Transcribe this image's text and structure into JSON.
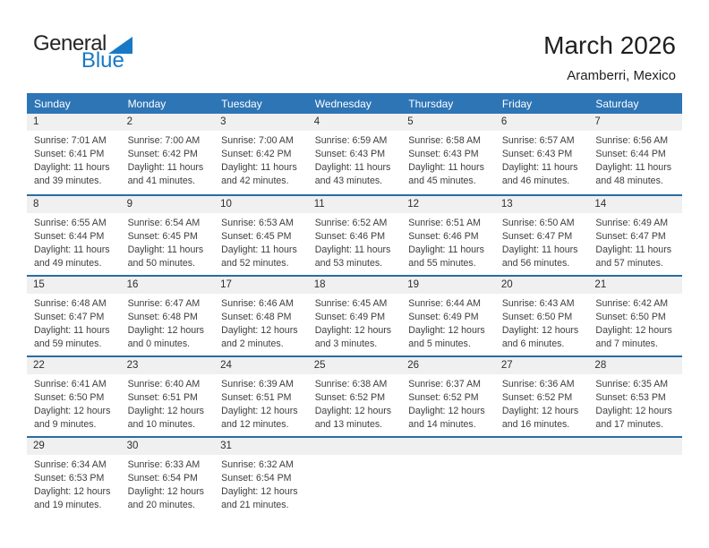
{
  "colors": {
    "header_bg": "#2E75B6",
    "week_divider": "#2B6CA3",
    "day_band_bg": "#F0F0F0",
    "logo_blue": "#1879C6",
    "title_color": "#1F1F1F",
    "body_text": "#3D3D3D",
    "day_number": "#2E2E2E"
  },
  "logo": {
    "general": "General",
    "blue": "Blue"
  },
  "header": {
    "title": "March 2026",
    "subtitle": "Aramberri, Mexico"
  },
  "weekdays": [
    "Sunday",
    "Monday",
    "Tuesday",
    "Wednesday",
    "Thursday",
    "Friday",
    "Saturday"
  ],
  "weeks": [
    [
      {
        "day": "1",
        "sunrise": "Sunrise: 7:01 AM",
        "sunset": "Sunset: 6:41 PM",
        "daylight1": "Daylight: 11 hours",
        "daylight2": "and 39 minutes."
      },
      {
        "day": "2",
        "sunrise": "Sunrise: 7:00 AM",
        "sunset": "Sunset: 6:42 PM",
        "daylight1": "Daylight: 11 hours",
        "daylight2": "and 41 minutes."
      },
      {
        "day": "3",
        "sunrise": "Sunrise: 7:00 AM",
        "sunset": "Sunset: 6:42 PM",
        "daylight1": "Daylight: 11 hours",
        "daylight2": "and 42 minutes."
      },
      {
        "day": "4",
        "sunrise": "Sunrise: 6:59 AM",
        "sunset": "Sunset: 6:43 PM",
        "daylight1": "Daylight: 11 hours",
        "daylight2": "and 43 minutes."
      },
      {
        "day": "5",
        "sunrise": "Sunrise: 6:58 AM",
        "sunset": "Sunset: 6:43 PM",
        "daylight1": "Daylight: 11 hours",
        "daylight2": "and 45 minutes."
      },
      {
        "day": "6",
        "sunrise": "Sunrise: 6:57 AM",
        "sunset": "Sunset: 6:43 PM",
        "daylight1": "Daylight: 11 hours",
        "daylight2": "and 46 minutes."
      },
      {
        "day": "7",
        "sunrise": "Sunrise: 6:56 AM",
        "sunset": "Sunset: 6:44 PM",
        "daylight1": "Daylight: 11 hours",
        "daylight2": "and 48 minutes."
      }
    ],
    [
      {
        "day": "8",
        "sunrise": "Sunrise: 6:55 AM",
        "sunset": "Sunset: 6:44 PM",
        "daylight1": "Daylight: 11 hours",
        "daylight2": "and 49 minutes."
      },
      {
        "day": "9",
        "sunrise": "Sunrise: 6:54 AM",
        "sunset": "Sunset: 6:45 PM",
        "daylight1": "Daylight: 11 hours",
        "daylight2": "and 50 minutes."
      },
      {
        "day": "10",
        "sunrise": "Sunrise: 6:53 AM",
        "sunset": "Sunset: 6:45 PM",
        "daylight1": "Daylight: 11 hours",
        "daylight2": "and 52 minutes."
      },
      {
        "day": "11",
        "sunrise": "Sunrise: 6:52 AM",
        "sunset": "Sunset: 6:46 PM",
        "daylight1": "Daylight: 11 hours",
        "daylight2": "and 53 minutes."
      },
      {
        "day": "12",
        "sunrise": "Sunrise: 6:51 AM",
        "sunset": "Sunset: 6:46 PM",
        "daylight1": "Daylight: 11 hours",
        "daylight2": "and 55 minutes."
      },
      {
        "day": "13",
        "sunrise": "Sunrise: 6:50 AM",
        "sunset": "Sunset: 6:47 PM",
        "daylight1": "Daylight: 11 hours",
        "daylight2": "and 56 minutes."
      },
      {
        "day": "14",
        "sunrise": "Sunrise: 6:49 AM",
        "sunset": "Sunset: 6:47 PM",
        "daylight1": "Daylight: 11 hours",
        "daylight2": "and 57 minutes."
      }
    ],
    [
      {
        "day": "15",
        "sunrise": "Sunrise: 6:48 AM",
        "sunset": "Sunset: 6:47 PM",
        "daylight1": "Daylight: 11 hours",
        "daylight2": "and 59 minutes."
      },
      {
        "day": "16",
        "sunrise": "Sunrise: 6:47 AM",
        "sunset": "Sunset: 6:48 PM",
        "daylight1": "Daylight: 12 hours",
        "daylight2": "and 0 minutes."
      },
      {
        "day": "17",
        "sunrise": "Sunrise: 6:46 AM",
        "sunset": "Sunset: 6:48 PM",
        "daylight1": "Daylight: 12 hours",
        "daylight2": "and 2 minutes."
      },
      {
        "day": "18",
        "sunrise": "Sunrise: 6:45 AM",
        "sunset": "Sunset: 6:49 PM",
        "daylight1": "Daylight: 12 hours",
        "daylight2": "and 3 minutes."
      },
      {
        "day": "19",
        "sunrise": "Sunrise: 6:44 AM",
        "sunset": "Sunset: 6:49 PM",
        "daylight1": "Daylight: 12 hours",
        "daylight2": "and 5 minutes."
      },
      {
        "day": "20",
        "sunrise": "Sunrise: 6:43 AM",
        "sunset": "Sunset: 6:50 PM",
        "daylight1": "Daylight: 12 hours",
        "daylight2": "and 6 minutes."
      },
      {
        "day": "21",
        "sunrise": "Sunrise: 6:42 AM",
        "sunset": "Sunset: 6:50 PM",
        "daylight1": "Daylight: 12 hours",
        "daylight2": "and 7 minutes."
      }
    ],
    [
      {
        "day": "22",
        "sunrise": "Sunrise: 6:41 AM",
        "sunset": "Sunset: 6:50 PM",
        "daylight1": "Daylight: 12 hours",
        "daylight2": "and 9 minutes."
      },
      {
        "day": "23",
        "sunrise": "Sunrise: 6:40 AM",
        "sunset": "Sunset: 6:51 PM",
        "daylight1": "Daylight: 12 hours",
        "daylight2": "and 10 minutes."
      },
      {
        "day": "24",
        "sunrise": "Sunrise: 6:39 AM",
        "sunset": "Sunset: 6:51 PM",
        "daylight1": "Daylight: 12 hours",
        "daylight2": "and 12 minutes."
      },
      {
        "day": "25",
        "sunrise": "Sunrise: 6:38 AM",
        "sunset": "Sunset: 6:52 PM",
        "daylight1": "Daylight: 12 hours",
        "daylight2": "and 13 minutes."
      },
      {
        "day": "26",
        "sunrise": "Sunrise: 6:37 AM",
        "sunset": "Sunset: 6:52 PM",
        "daylight1": "Daylight: 12 hours",
        "daylight2": "and 14 minutes."
      },
      {
        "day": "27",
        "sunrise": "Sunrise: 6:36 AM",
        "sunset": "Sunset: 6:52 PM",
        "daylight1": "Daylight: 12 hours",
        "daylight2": "and 16 minutes."
      },
      {
        "day": "28",
        "sunrise": "Sunrise: 6:35 AM",
        "sunset": "Sunset: 6:53 PM",
        "daylight1": "Daylight: 12 hours",
        "daylight2": "and 17 minutes."
      }
    ],
    [
      {
        "day": "29",
        "sunrise": "Sunrise: 6:34 AM",
        "sunset": "Sunset: 6:53 PM",
        "daylight1": "Daylight: 12 hours",
        "daylight2": "and 19 minutes."
      },
      {
        "day": "30",
        "sunrise": "Sunrise: 6:33 AM",
        "sunset": "Sunset: 6:54 PM",
        "daylight1": "Daylight: 12 hours",
        "daylight2": "and 20 minutes."
      },
      {
        "day": "31",
        "sunrise": "Sunrise: 6:32 AM",
        "sunset": "Sunset: 6:54 PM",
        "daylight1": "Daylight: 12 hours",
        "daylight2": "and 21 minutes."
      },
      null,
      null,
      null,
      null
    ]
  ]
}
